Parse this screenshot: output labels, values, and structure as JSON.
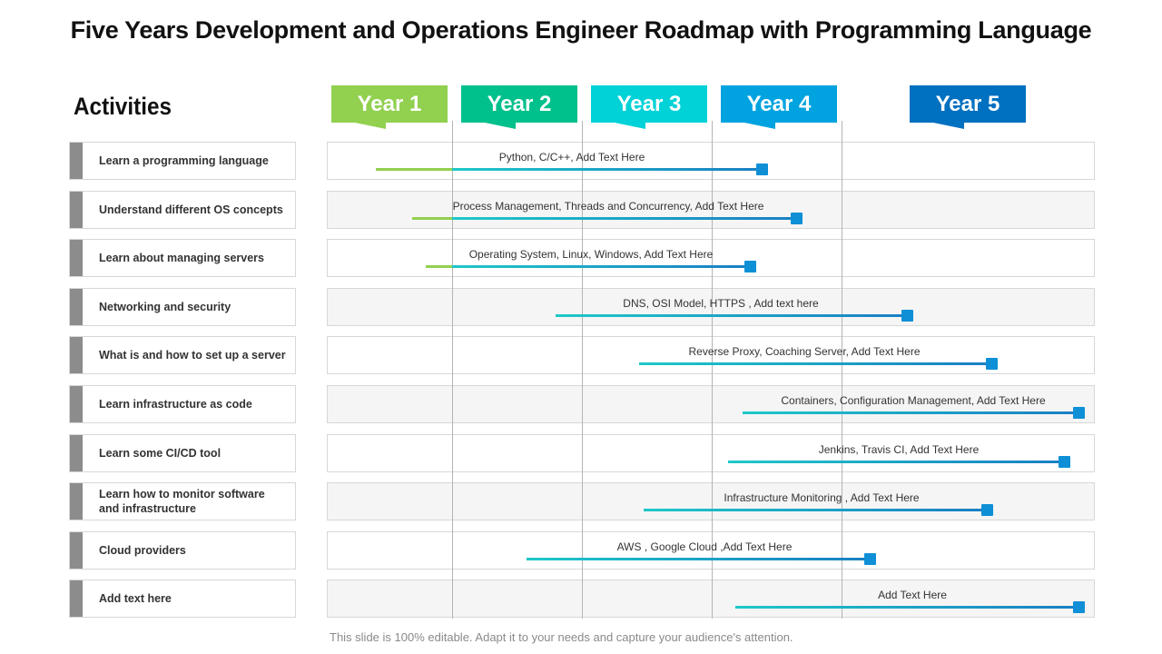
{
  "title": "Five Years Development and Operations Engineer Roadmap with Programming Language",
  "activities_heading": "Activities",
  "years": [
    {
      "label": "Year 1",
      "color": "#92d050"
    },
    {
      "label": "Year 2",
      "color": "#00c08b"
    },
    {
      "label": "Year 3",
      "color": "#00d2d8"
    },
    {
      "label": "Year 4",
      "color": "#00a3e0"
    },
    {
      "label": "Year 5",
      "color": "#0070c0"
    }
  ],
  "activities": [
    {
      "label": "Learn a programming language",
      "tools": "Python, C/C++, Add Text Here"
    },
    {
      "label": "Understand different OS concepts",
      "tools": "Process Management, Threads and Concurrency, Add Text Here"
    },
    {
      "label": "Learn about managing servers",
      "tools": "Operating System, Linux, Windows, Add Text Here"
    },
    {
      "label": "Networking and security",
      "tools": "DNS, OSI Model, HTTPS , Add text here"
    },
    {
      "label": "What is and how to set up a server",
      "tools": "Reverse Proxy, Coaching Server, Add Text Here"
    },
    {
      "label": "Learn infrastructure as code",
      "tools": "Containers, Configuration Management, Add Text Here"
    },
    {
      "label": "Learn some CI/CD tool",
      "tools": "Jenkins, Travis CI, Add Text Here"
    },
    {
      "label": "Learn how to monitor software\nand infrastructure",
      "tools": "Infrastructure Monitoring , Add Text Here"
    },
    {
      "label": "Cloud providers",
      "tools": "AWS , Google Cloud ,Add Text Here"
    },
    {
      "label": "Add text here",
      "tools": "Add Text Here"
    }
  ],
  "footer": "This slide is 100% editable. Adapt it to your needs and capture your audience's attention.",
  "colors": {
    "green": "#92d050",
    "teal": "#1ec8c8",
    "blue": "#1a7fc4",
    "marker": "#0e8fd6"
  }
}
